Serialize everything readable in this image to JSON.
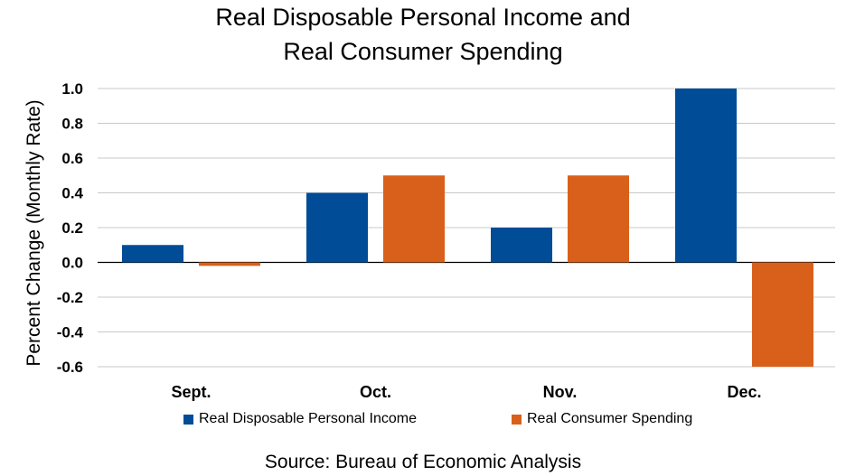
{
  "chart_data": {
    "type": "bar",
    "title_lines": [
      "Real Disposable Personal Income and",
      "Real Consumer Spending"
    ],
    "ylabel": "Percent Change (Monthly Rate)",
    "xlabel": "",
    "categories": [
      "Sept.",
      "Oct.",
      "Nov.",
      "Dec."
    ],
    "series": [
      {
        "name": "Real Disposable Personal Income",
        "color": "#004C97",
        "values": [
          0.1,
          0.4,
          0.2,
          1.0
        ]
      },
      {
        "name": "Real Consumer Spending",
        "color": "#D9601A",
        "values": [
          -0.02,
          0.5,
          0.5,
          -0.6
        ]
      }
    ],
    "ylim": [
      -0.6,
      1.0
    ],
    "yticks": [
      "1.0",
      "0.8",
      "0.6",
      "0.4",
      "0.2",
      "0.0",
      "-0.2",
      "-0.4",
      "-0.6"
    ],
    "ytick_values": [
      1.0,
      0.8,
      0.6,
      0.4,
      0.2,
      0.0,
      -0.2,
      -0.4,
      -0.6
    ],
    "grid": true,
    "legend_position": "bottom"
  },
  "source": "Source:  Bureau of Economic Analysis"
}
